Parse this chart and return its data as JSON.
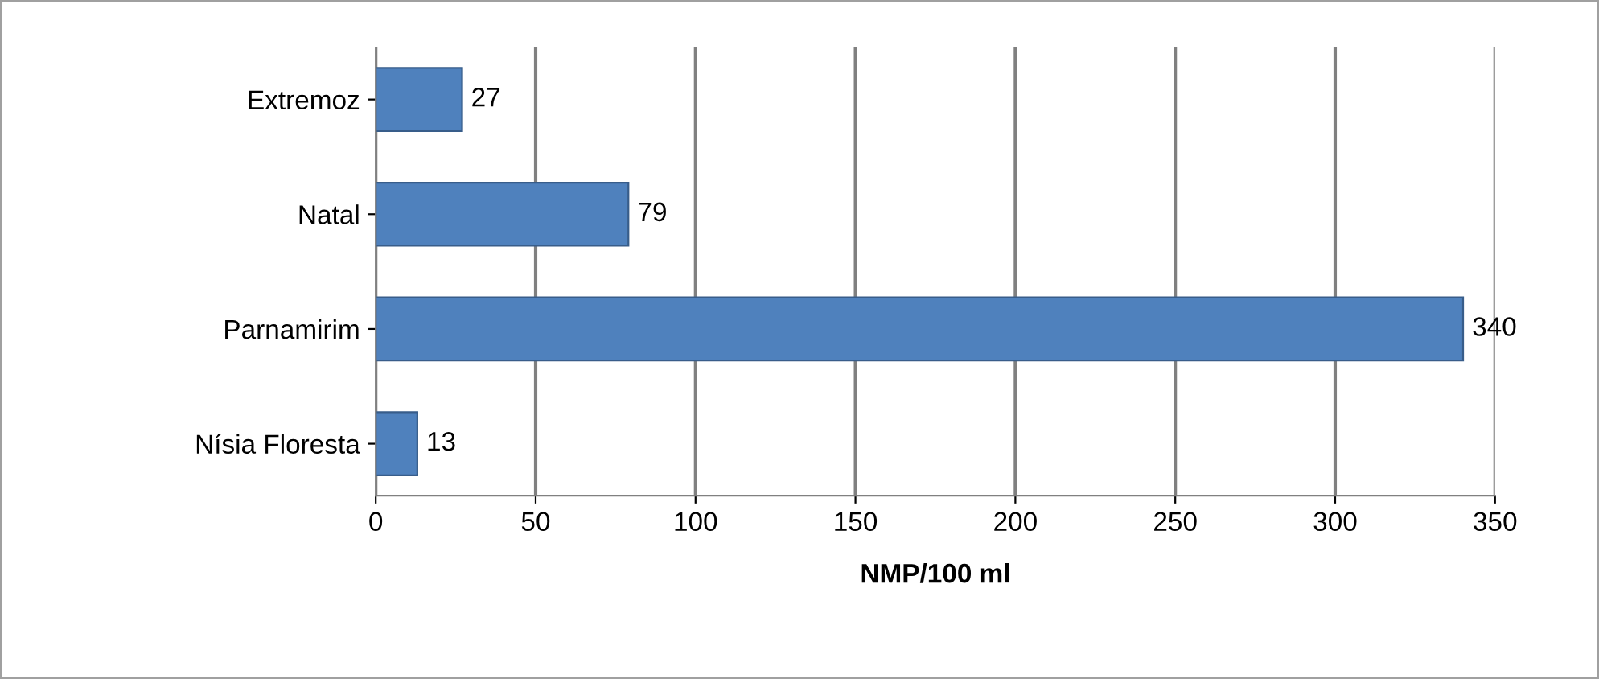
{
  "chart_data": {
    "type": "bar",
    "orientation": "horizontal",
    "xlabel": "NMP/100 ml",
    "categories": [
      "Extremoz",
      "Natal",
      "Parnamirim",
      "Nísia Floresta"
    ],
    "values": [
      27,
      79,
      340,
      13
    ],
    "color": "#4f81bd",
    "xlim": [
      0,
      350
    ],
    "xticks": [
      0,
      50,
      100,
      150,
      200,
      250,
      300,
      350
    ],
    "grid": "x",
    "data_labels": true
  }
}
